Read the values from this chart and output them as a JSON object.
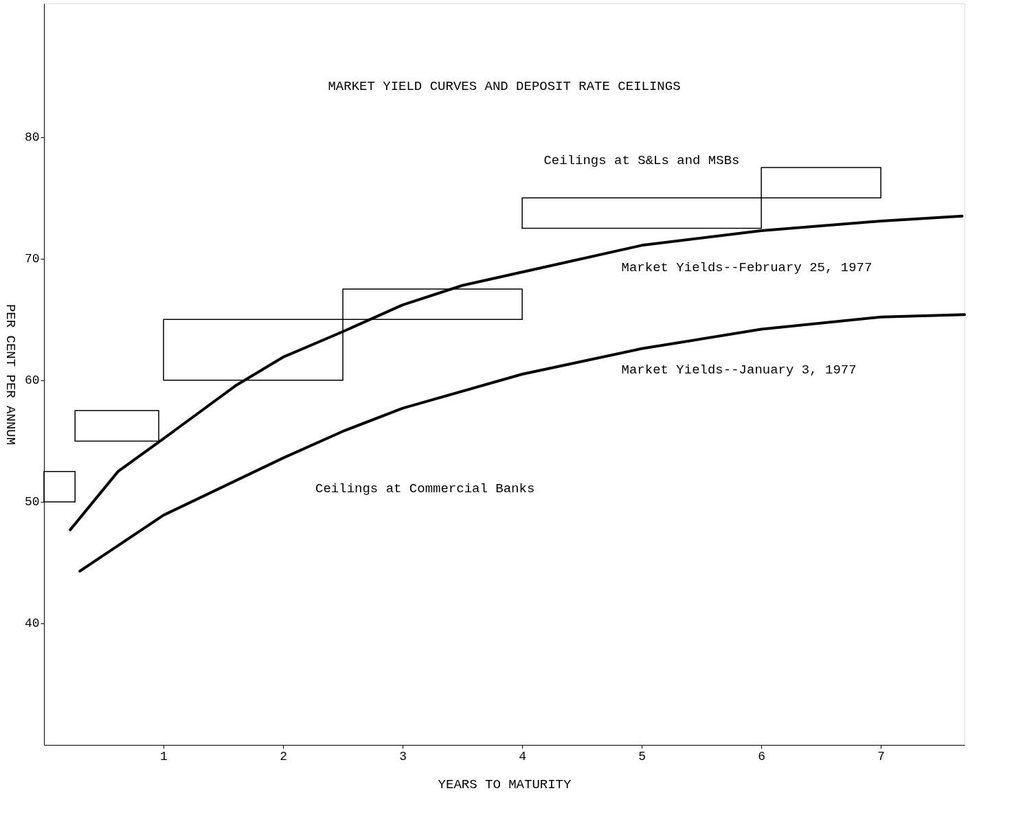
{
  "chart_data": {
    "type": "line",
    "title": "MARKET YIELD CURVES AND DEPOSIT RATE CEILINGS",
    "xlabel": "YEARS TO MATURITY",
    "ylabel": "PER CENT PER ANNUM",
    "xlim": [
      0,
      7.7
    ],
    "ylim": [
      30,
      91
    ],
    "xticks": [
      1,
      2,
      3,
      4,
      5,
      6,
      7
    ],
    "yticks": [
      40,
      50,
      60,
      70,
      80
    ],
    "grid": false,
    "line_style": "solid",
    "marker": "none",
    "series": [
      {
        "color": "#000000",
        "x": [
          0.22,
          0.62,
          1.0,
          1.61,
          2.0,
          2.5,
          3.0,
          3.5,
          4.0,
          5.0,
          6.0,
          7.0,
          7.68
        ],
        "values": [
          47.7,
          52.5,
          55.2,
          59.6,
          61.9,
          64.0,
          66.2,
          67.8,
          68.9,
          71.1,
          72.3,
          73.1,
          73.5
        ]
      },
      {
        "color": "#000000",
        "x": [
          0.3,
          1.0,
          2.0,
          2.5,
          3.0,
          4.0,
          5.0,
          6.0,
          7.0,
          7.7
        ],
        "values": [
          44.3,
          48.9,
          53.6,
          55.8,
          57.7,
          60.5,
          62.6,
          64.2,
          65.2,
          65.4
        ]
      },
      {
        "color": "#000000",
        "x": [
          0,
          0,
          0.26,
          0.26
        ],
        "values": [
          50,
          52.5,
          52.5,
          50
        ]
      },
      {
        "color": "#000000",
        "x": [
          0,
          0.26
        ],
        "values": [
          50,
          50
        ]
      },
      {
        "color": "#000000",
        "x": [
          0.26,
          0.26,
          0.96,
          0.96
        ],
        "values": [
          55,
          57.5,
          57.5,
          55
        ]
      },
      {
        "color": "#000000",
        "x": [
          0.26,
          0.96
        ],
        "values": [
          55,
          55
        ]
      },
      {
        "color": "#000000",
        "x": [
          1,
          1,
          2.5,
          2.5
        ],
        "values": [
          60,
          65,
          65,
          60
        ]
      },
      {
        "color": "#000000",
        "x": [
          1,
          2.5
        ],
        "values": [
          60,
          60
        ]
      },
      {
        "color": "#000000",
        "x": [
          2.5,
          2.5,
          4,
          4
        ],
        "values": [
          65,
          67.5,
          67.5,
          65
        ]
      },
      {
        "color": "#000000",
        "x": [
          2.5,
          4
        ],
        "values": [
          65,
          65
        ]
      },
      {
        "color": "#000000",
        "x": [
          4,
          4,
          6,
          6
        ],
        "values": [
          72.5,
          75,
          75,
          72.5
        ]
      },
      {
        "color": "#000000",
        "x": [
          4,
          6
        ],
        "values": [
          72.5,
          72.5
        ]
      },
      {
        "color": "#000000",
        "x": [
          6,
          6,
          7,
          7
        ],
        "values": [
          75,
          77.5,
          77.5,
          75
        ]
      },
      {
        "color": "#000000",
        "x": [
          6,
          7
        ],
        "values": [
          75,
          75
        ]
      }
    ],
    "annotations": [
      "Ceilings at S&Ls and MSBs",
      "Market Yields--February 25, 1977",
      "Market Yields--January 3, 1977",
      "Ceilings at Commercial Banks"
    ]
  }
}
